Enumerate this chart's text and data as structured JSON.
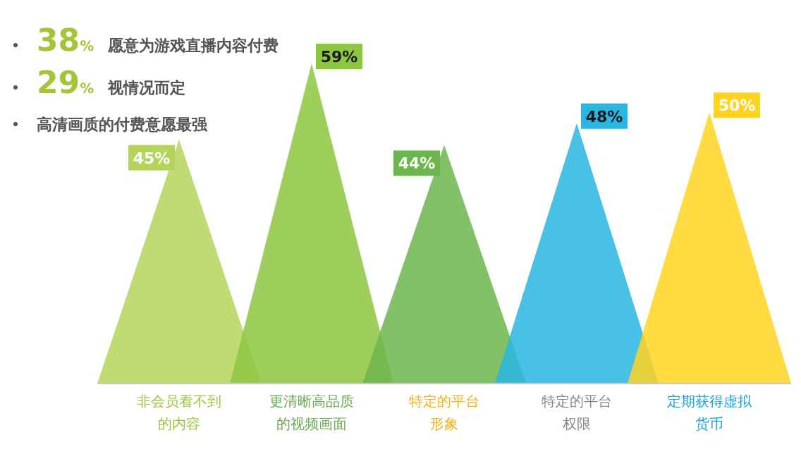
{
  "chart_data": {
    "type": "bar",
    "categories": [
      "非会员看不到的内容",
      "更清晰高品质的视频画面",
      "特定的平台形象",
      "特定的平台权限",
      "定期获得虚拟货币"
    ],
    "values": [
      45,
      59,
      44,
      48,
      50
    ],
    "value_labels": [
      "45%",
      "59%",
      "44%",
      "48%",
      "50%"
    ],
    "colors": [
      "#b5d55a",
      "#8dc63f",
      "#6cb64e",
      "#29b6e3",
      "#ffd31f"
    ],
    "annotations": [
      "38% 愿意为游戏直播内容付费",
      "29% 视情况而定",
      "高清画质的付费意愿最强"
    ]
  }
}
